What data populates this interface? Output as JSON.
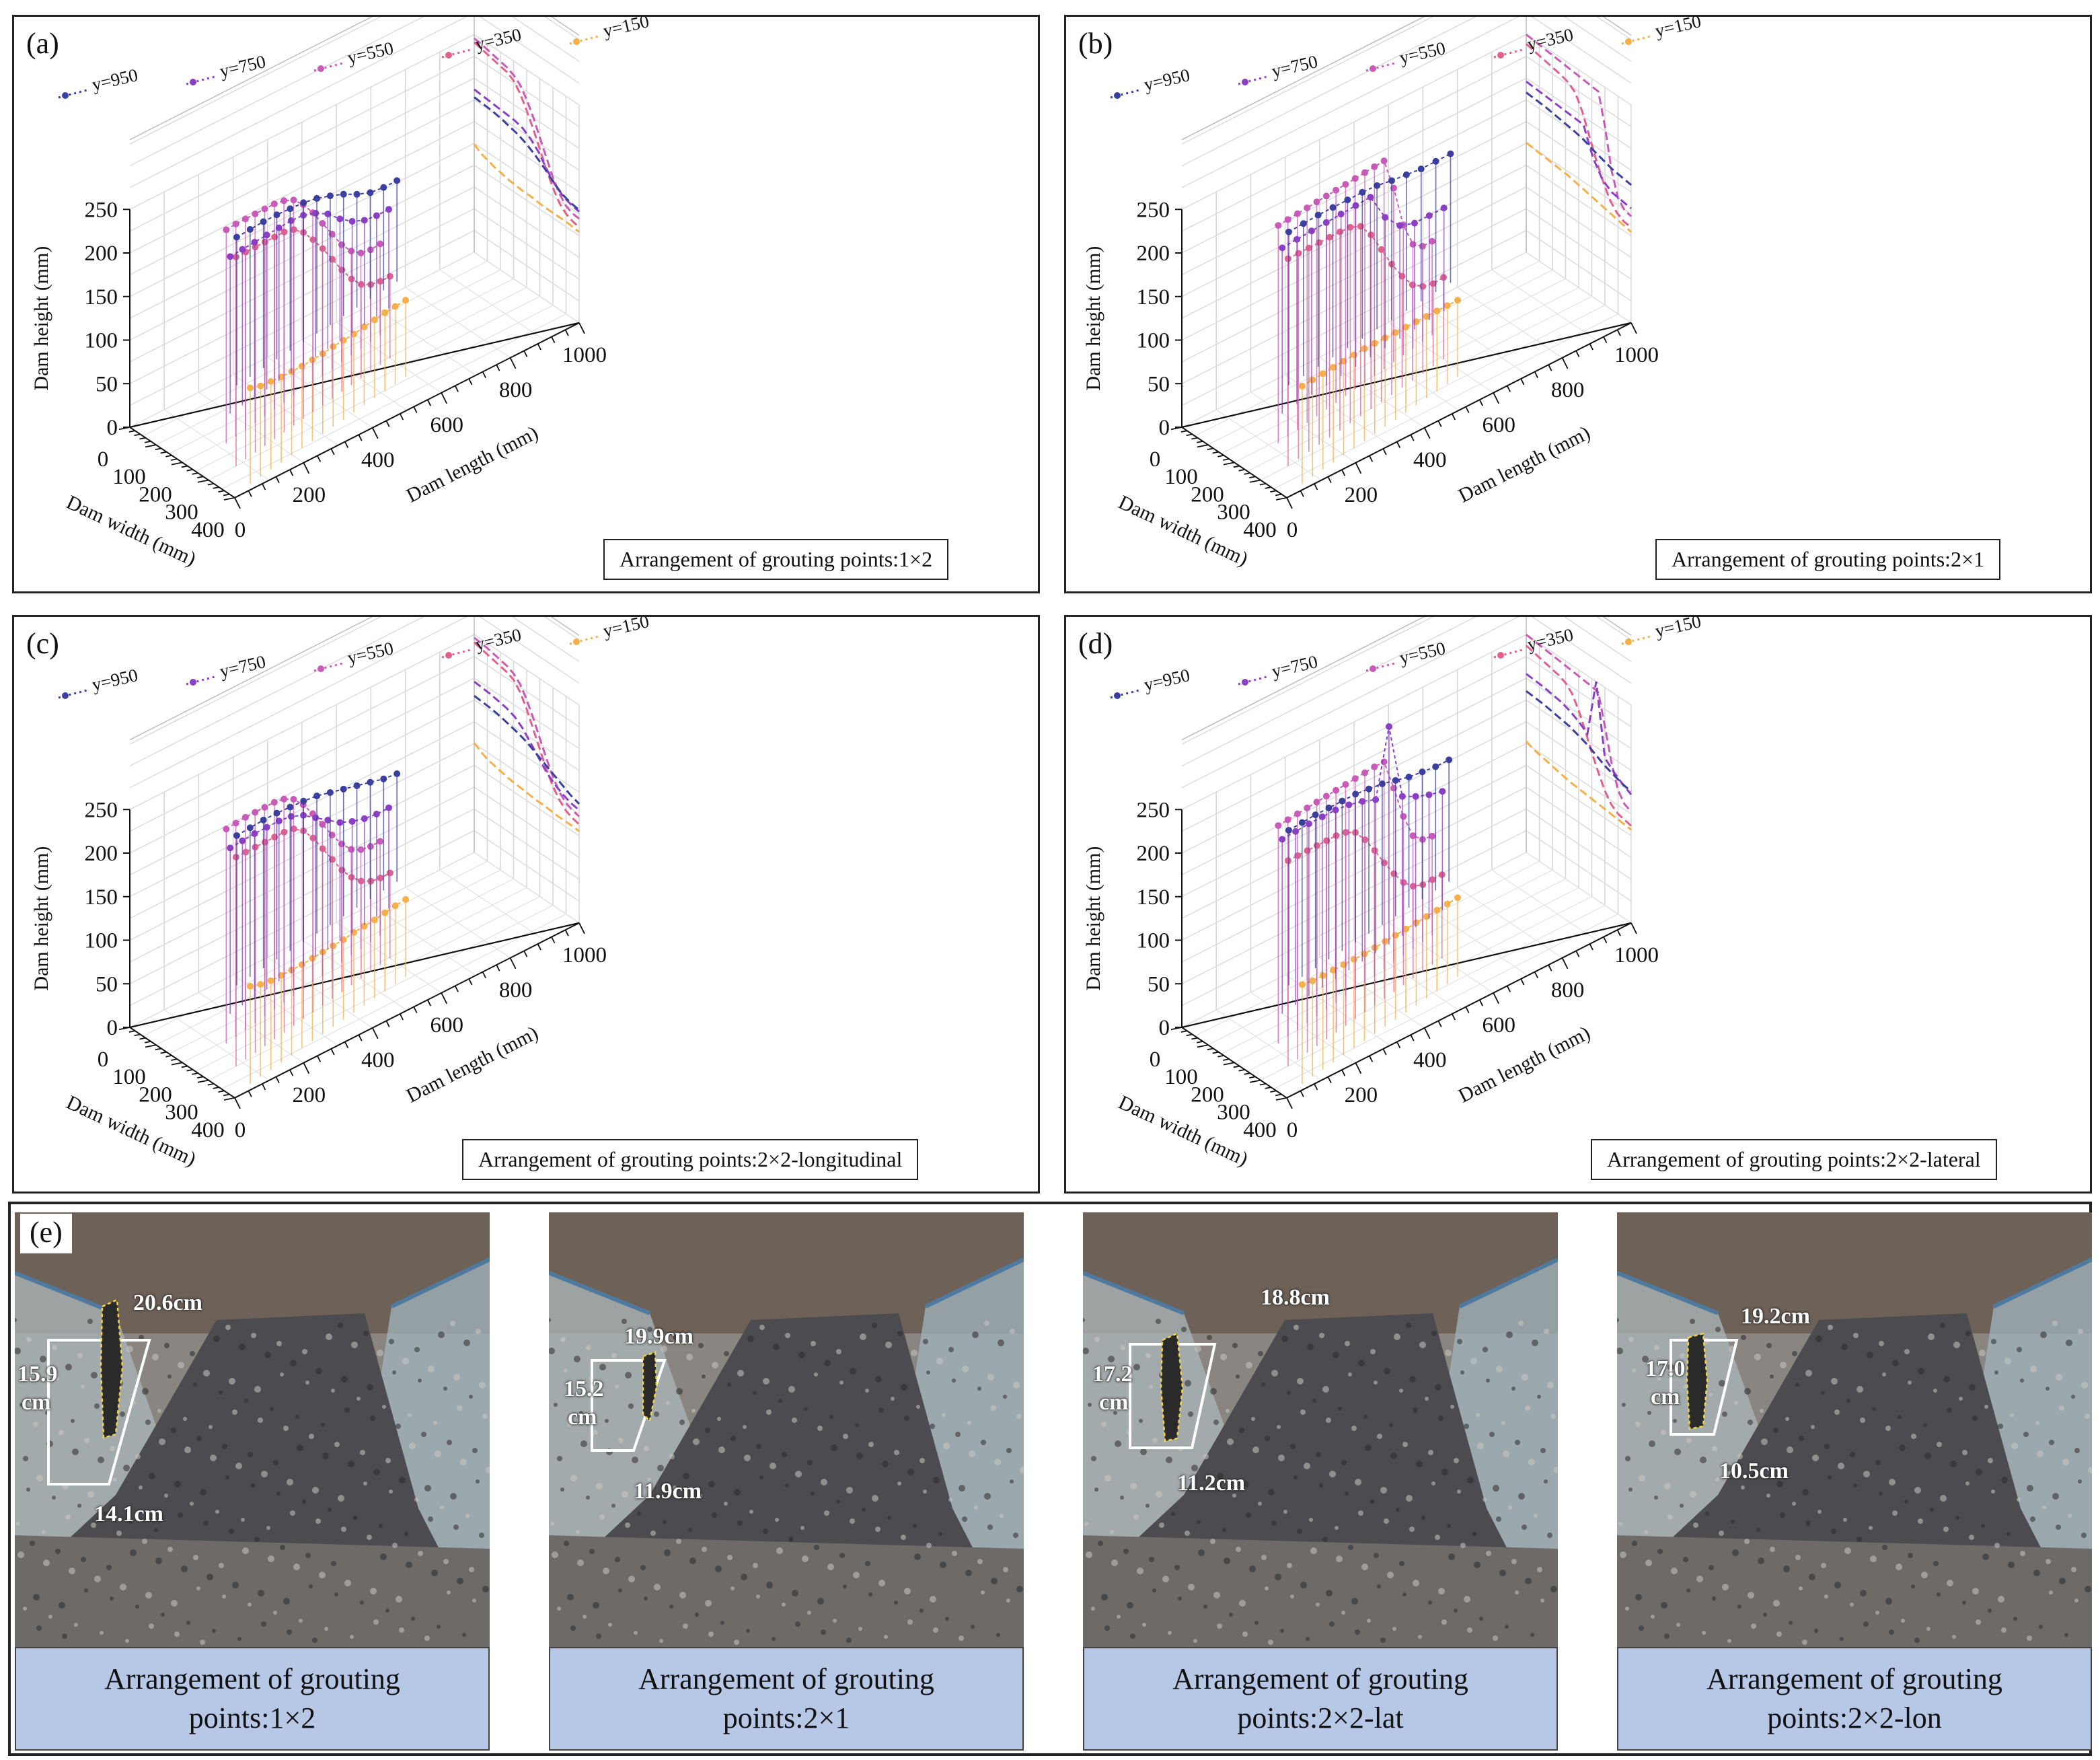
{
  "chart_data": [
    {
      "type": "3d-stem",
      "panel_label": "(a)",
      "arrangement": "Arrangement of grouting points:1×2",
      "zlabel": "Dam height (mm)",
      "xlabel": "Dam width (mm)",
      "ylabel": "Dam length (mm)",
      "zlim": [
        0,
        250
      ],
      "xlim": [
        0,
        400
      ],
      "ylim": [
        0,
        1000
      ],
      "z_ticks": [
        "0",
        "50",
        "100",
        "150",
        "200",
        "250"
      ],
      "x_ticks": [
        "0",
        "100",
        "200",
        "300",
        "400"
      ],
      "y_ticks": [
        "0",
        "200",
        "400",
        "600",
        "800",
        "1000"
      ],
      "series": [
        {
          "name": "y=150",
          "color": "#f6b04b",
          "profile": [
            110,
            104,
            101,
            98,
            96,
            94,
            93,
            92,
            92,
            91,
            90,
            90,
            90,
            90,
            89,
            88
          ]
        },
        {
          "name": "y=350",
          "color": "#e0628a",
          "profile": [
            240,
            238,
            236,
            234,
            232,
            230,
            225,
            214,
            198,
            180,
            160,
            140,
            122,
            108,
            100,
            96,
            94
          ]
        },
        {
          "name": "y=550",
          "color": "#c85bb8",
          "profile": [
            245,
            244,
            242,
            240,
            238,
            236,
            232,
            225,
            212,
            195,
            175,
            155,
            135,
            120,
            110,
            106,
            105
          ]
        },
        {
          "name": "y=750",
          "color": "#8b3fc4",
          "profile": [
            180,
            179,
            178,
            177,
            176,
            175,
            172,
            165,
            155,
            140,
            128,
            120,
            116,
            114
          ]
        },
        {
          "name": "y=950",
          "color": "#3b3f9e",
          "profile": [
            170,
            169,
            168,
            166,
            163,
            160,
            155,
            148,
            140,
            130,
            122,
            118,
            116
          ]
        }
      ]
    },
    {
      "type": "3d-stem",
      "panel_label": "(b)",
      "arrangement": "Arrangement of grouting points:2×1",
      "zlabel": "Dam height (mm)",
      "xlabel": "Dam width (mm)",
      "ylabel": "Dam length (mm)",
      "zlim": [
        0,
        250
      ],
      "xlim": [
        0,
        400
      ],
      "ylim": [
        0,
        1000
      ],
      "z_ticks": [
        "0",
        "50",
        "100",
        "150",
        "200",
        "250"
      ],
      "x_ticks": [
        "0",
        "100",
        "200",
        "300",
        "400"
      ],
      "y_ticks": [
        "0",
        "200",
        "400",
        "600",
        "800",
        "1000"
      ],
      "series": [
        {
          "name": "y=150",
          "color": "#f6b04b",
          "profile": [
            112,
            111,
            110,
            109,
            108,
            107,
            106,
            104,
            102,
            100,
            98,
            96,
            94,
            92,
            90,
            88
          ]
        },
        {
          "name": "y=350",
          "color": "#e0628a",
          "profile": [
            238,
            236,
            234,
            232,
            230,
            228,
            225,
            218,
            200,
            175,
            150,
            128,
            110,
            100,
            95,
            94
          ]
        },
        {
          "name": "y=550",
          "color": "#c85bb8",
          "profile": [
            250,
            249,
            248,
            247,
            246,
            245,
            244,
            243,
            242,
            241,
            240,
            239,
            200,
            150,
            120,
            110,
            108
          ]
        },
        {
          "name": "y=750",
          "color": "#8b3fc4",
          "profile": [
            190,
            189,
            188,
            187,
            186,
            185,
            184,
            150,
            130,
            122,
            120,
            118
          ]
        },
        {
          "name": "y=950",
          "color": "#3b3f9e",
          "profile": [
            176,
            175,
            174,
            172,
            170,
            168,
            165,
            160,
            156,
            152,
            150,
            148
          ]
        }
      ]
    },
    {
      "type": "3d-stem",
      "panel_label": "(c)",
      "arrangement": "Arrangement of grouting points:2×2-longitudinal",
      "zlabel": "Dam height (mm)",
      "xlabel": "Dam width (mm)",
      "ylabel": "Dam length (mm)",
      "zlim": [
        0,
        250
      ],
      "xlim": [
        0,
        400
      ],
      "ylim": [
        0,
        1000
      ],
      "z_ticks": [
        "0",
        "50",
        "100",
        "150",
        "200",
        "250"
      ],
      "x_ticks": [
        "0",
        "100",
        "200",
        "300",
        "400"
      ],
      "y_ticks": [
        "0",
        "200",
        "400",
        "600",
        "800",
        "1000"
      ],
      "series": [
        {
          "name": "y=150",
          "color": "#f6b04b",
          "profile": [
            112,
            106,
            102,
            100,
            98,
            96,
            95,
            94,
            93,
            92,
            92,
            91,
            90,
            90,
            90,
            89
          ]
        },
        {
          "name": "y=350",
          "color": "#e0628a",
          "profile": [
            240,
            238,
            236,
            234,
            232,
            230,
            226,
            216,
            200,
            180,
            160,
            140,
            124,
            112,
            104,
            100,
            98
          ]
        },
        {
          "name": "y=550",
          "color": "#c85bb8",
          "profile": [
            246,
            245,
            244,
            242,
            240,
            238,
            234,
            226,
            212,
            194,
            174,
            154,
            136,
            122,
            114,
            110,
            108
          ]
        },
        {
          "name": "y=750",
          "color": "#8b3fc4",
          "profile": [
            190,
            189,
            188,
            186,
            184,
            180,
            172,
            160,
            148,
            136,
            128,
            122,
            118,
            116
          ]
        },
        {
          "name": "y=950",
          "color": "#3b3f9e",
          "profile": [
            172,
            171,
            170,
            168,
            165,
            162,
            158,
            152,
            146,
            140,
            134,
            128,
            124
          ]
        }
      ]
    },
    {
      "type": "3d-stem",
      "panel_label": "(d)",
      "arrangement": "Arrangement of grouting points:2×2-lateral",
      "zlabel": "Dam height (mm)",
      "xlabel": "Dam width (mm)",
      "ylabel": "Dam length (mm)",
      "zlim": [
        0,
        250
      ],
      "xlim": [
        0,
        400
      ],
      "ylim": [
        0,
        1000
      ],
      "z_ticks": [
        "0",
        "50",
        "100",
        "150",
        "200",
        "250"
      ],
      "x_ticks": [
        "0",
        "100",
        "200",
        "300",
        "400"
      ],
      "y_ticks": [
        "0",
        "200",
        "400",
        "600",
        "800",
        "1000"
      ],
      "series": [
        {
          "name": "y=150",
          "color": "#f6b04b",
          "profile": [
            114,
            110,
            108,
            106,
            104,
            102,
            100,
            99,
            98,
            97,
            96,
            95,
            94,
            93,
            92,
            91
          ]
        },
        {
          "name": "y=350",
          "color": "#e0628a",
          "profile": [
            236,
            234,
            232,
            230,
            228,
            226,
            222,
            214,
            198,
            178,
            156,
            136,
            118,
            106,
            100,
            98,
            96
          ]
        },
        {
          "name": "y=550",
          "color": "#c85bb8",
          "profile": [
            250,
            249,
            248,
            247,
            246,
            245,
            244,
            243,
            242,
            241,
            240,
            238,
            200,
            160,
            130,
            118,
            114
          ]
        },
        {
          "name": "y=750",
          "color": "#8b3fc4",
          "profile": [
            200,
            199,
            198,
            196,
            194,
            190,
            184,
            176,
            250,
            160,
            150,
            142,
            136
          ]
        },
        {
          "name": "y=950",
          "color": "#3b3f9e",
          "profile": [
            178,
            177,
            176,
            174,
            172,
            170,
            166,
            162,
            156,
            150,
            146,
            142,
            140
          ]
        }
      ]
    }
  ],
  "photos": {
    "label": "(e)",
    "items": [
      {
        "top": "20.6cm",
        "left_a": "15.9",
        "left_b": "cm",
        "bottom": "14.1cm",
        "caption_1": "Arrangement of grouting",
        "caption_2": "points:1×2"
      },
      {
        "top": "19.9cm",
        "left_a": "15.2",
        "left_b": "cm",
        "bottom": "11.9cm",
        "caption_1": "Arrangement of grouting",
        "caption_2": "points:2×1"
      },
      {
        "top": "18.8cm",
        "left_a": "17.2",
        "left_b": "cm",
        "bottom": "11.2cm",
        "caption_1": "Arrangement of grouting",
        "caption_2": "points:2×2-lat"
      },
      {
        "top": "19.2cm",
        "left_a": "17.0",
        "left_b": "cm",
        "bottom": "10.5cm",
        "caption_1": "Arrangement of grouting",
        "caption_2": "points:2×2-lon"
      }
    ]
  }
}
